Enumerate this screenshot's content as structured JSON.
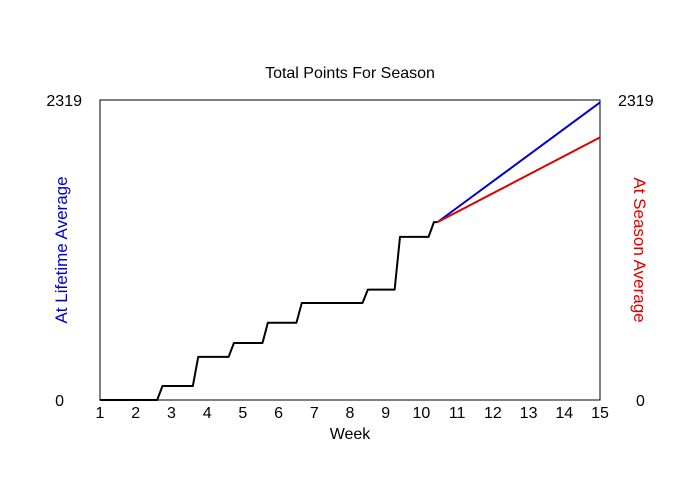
{
  "chart_data": {
    "type": "line",
    "title": "Total Points For Season",
    "xlabel": "Week",
    "ylabel_left": "At Lifetime Average",
    "ylabel_right": "At Season Average",
    "xlim": [
      1,
      15
    ],
    "ylim": [
      0,
      2319
    ],
    "x_ticks": [
      "1",
      "2",
      "3",
      "4",
      "5",
      "6",
      "7",
      "8",
      "9",
      "10",
      "11",
      "12",
      "13",
      "14",
      "15"
    ],
    "y_tick_left": {
      "min": "0",
      "max": "2319"
    },
    "y_tick_right": {
      "min": "0",
      "max": "2319"
    },
    "grid": false,
    "series": [
      {
        "color": "#000000",
        "points": [
          [
            1,
            0
          ],
          [
            2.6,
            0
          ],
          [
            2.75,
            108
          ],
          [
            3.6,
            108
          ],
          [
            3.75,
            333
          ],
          [
            4.6,
            333
          ],
          [
            4.75,
            441
          ],
          [
            5.55,
            441
          ],
          [
            5.7,
            597
          ],
          [
            6.5,
            597
          ],
          [
            6.65,
            750
          ],
          [
            8.35,
            750
          ],
          [
            8.5,
            853
          ],
          [
            9.25,
            853
          ],
          [
            9.4,
            1261
          ],
          [
            10.2,
            1261
          ],
          [
            10.35,
            1375
          ],
          [
            10.45,
            1375
          ]
        ]
      },
      {
        "color": "#0000cc",
        "points": [
          [
            10.45,
            1375
          ],
          [
            15,
            2300
          ]
        ]
      },
      {
        "color": "#dd0000",
        "points": [
          [
            10.45,
            1375
          ],
          [
            15,
            2030
          ]
        ]
      }
    ],
    "colors": {
      "left_axis_label": "#0000cc",
      "right_axis_label": "#dd0000",
      "text": "#000000"
    }
  }
}
